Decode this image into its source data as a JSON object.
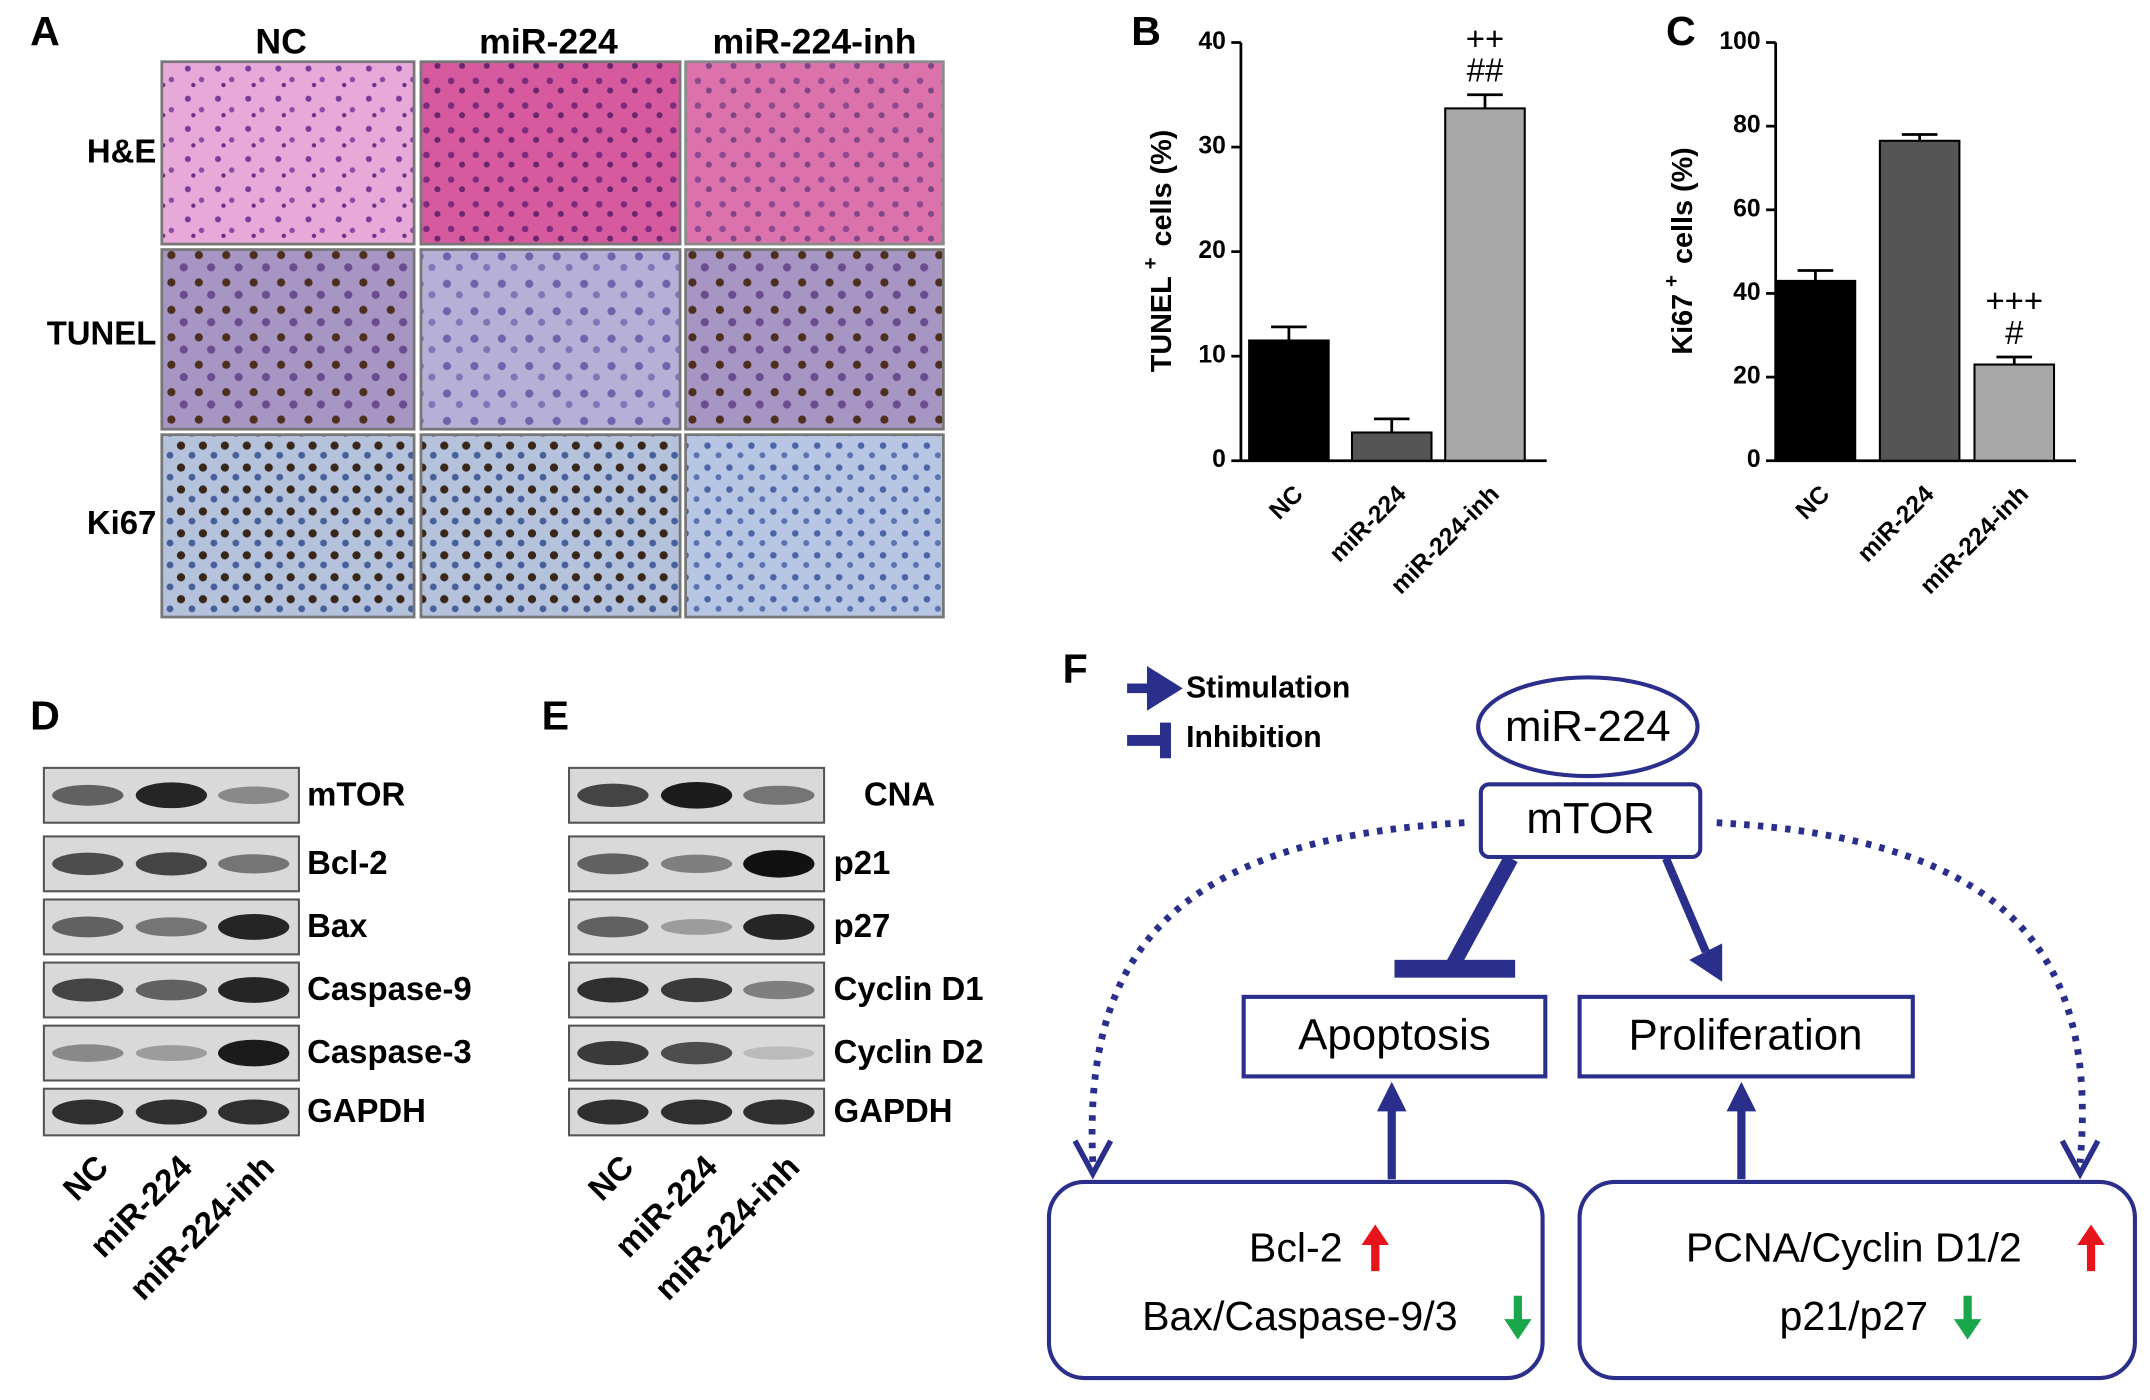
{
  "panels": {
    "A": {
      "label": "A",
      "columns": [
        "NC",
        "miR-224",
        "miR-224-inh"
      ],
      "rows": [
        "H&E",
        "TUNEL",
        "Ki67"
      ]
    },
    "D": {
      "label": "D",
      "bands": [
        "mTOR",
        "Bcl-2",
        "Bax",
        "Caspase-9",
        "Caspase-3",
        "GAPDH"
      ],
      "lanes": [
        "NC",
        "miR-224",
        "miR-224-inh"
      ]
    },
    "E": {
      "label": "E",
      "bands": [
        "CNA",
        "p21",
        "p27",
        "Cyclin D1",
        "Cyclin D2",
        "GAPDH"
      ],
      "lanes": [
        "NC",
        "miR-224",
        "miR-224-inh"
      ]
    },
    "F": {
      "label": "F",
      "legend": [
        "Stimulation",
        "Inhibition"
      ],
      "nodes": {
        "mirna": "miR-224",
        "target": "mTOR",
        "left": "Apoptosis",
        "right": "Proliferation",
        "left_box": [
          "Bcl-2",
          "Bax/Caspase-9/3"
        ],
        "right_box": [
          "PCNA/Cyclin D1/2",
          "p21/p27"
        ]
      }
    }
  },
  "chart_data": [
    {
      "type": "bar",
      "panel_label": "B",
      "y_label": [
        "TUNEL",
        "+",
        "cells (%)"
      ],
      "categories": [
        "NC",
        "miR-224",
        "miR-224-inh"
      ],
      "values": [
        11.5,
        2.7,
        33.7
      ],
      "errors": [
        1.3,
        1.3,
        1.3
      ],
      "colors": [
        "#000000",
        "#555555",
        "#a8a8a8"
      ],
      "annotations": [
        null,
        null,
        [
          "++",
          "##"
        ]
      ],
      "ylim": [
        0,
        40
      ],
      "yticks": [
        0,
        10,
        20,
        30,
        40
      ]
    },
    {
      "type": "bar",
      "panel_label": "C",
      "y_label": [
        "Ki67",
        "+",
        "cells (%)"
      ],
      "categories": [
        "NC",
        "miR-224",
        "miR-224-inh"
      ],
      "values": [
        43,
        76.5,
        23
      ],
      "errors": [
        2.5,
        1.5,
        1.8
      ],
      "colors": [
        "#000000",
        "#555555",
        "#a8a8a8"
      ],
      "annotations": [
        null,
        null,
        [
          "+++",
          "#"
        ]
      ],
      "ylim": [
        0,
        100
      ],
      "yticks": [
        0,
        20,
        40,
        60,
        80,
        100
      ]
    }
  ]
}
